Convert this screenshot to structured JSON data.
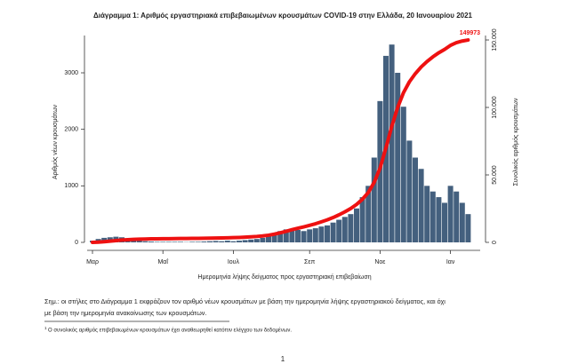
{
  "chart_data": {
    "type": "bar",
    "title": "Διάγραμμα 1: Αριθμός εργαστηριακά επιβεβαιωμένων κρουσμάτων COVID-19 στην Ελλάδα, 20 Ιανουαρίου 2021",
    "ylabel": "Αριθμός νέων κρουσμάτων",
    "y2label": "Συνολικός αριθμός κρουσμάτων",
    "xlabel": "Ημερομηνία λήψης δείγματος προς εργαστηριακή επιβεβαίωση",
    "categories": [
      "Μαρ",
      null,
      null,
      null,
      null,
      null,
      null,
      null,
      null,
      null,
      null,
      null,
      "Μαΐ",
      null,
      null,
      null,
      null,
      null,
      null,
      null,
      null,
      null,
      null,
      null,
      "Ιουλ",
      null,
      null,
      null,
      null,
      null,
      null,
      null,
      null,
      null,
      null,
      null,
      null,
      "Σεπ",
      null,
      null,
      null,
      null,
      null,
      null,
      null,
      null,
      null,
      null,
      null,
      "Νοε",
      null,
      null,
      null,
      null,
      null,
      null,
      null,
      null,
      null,
      null,
      null,
      "Ιαν",
      null,
      null,
      null
    ],
    "series": [
      {
        "type": "bar",
        "color": "#44607e",
        "values": [
          30,
          60,
          80,
          90,
          100,
          90,
          60,
          40,
          30,
          20,
          15,
          10,
          10,
          10,
          10,
          10,
          5,
          10,
          10,
          15,
          20,
          25,
          20,
          30,
          20,
          30,
          40,
          50,
          60,
          80,
          110,
          150,
          200,
          230,
          240,
          220,
          200,
          230,
          250,
          280,
          300,
          350,
          400,
          450,
          500,
          600,
          800,
          1000,
          1500,
          2500,
          3300,
          3500,
          3000,
          2400,
          1800,
          1500,
          1300,
          1000,
          900,
          800,
          700,
          1000,
          900,
          700,
          500
        ]
      },
      {
        "type": "line",
        "axis": "y2",
        "color": "#ee1111",
        "values": [
          0,
          200,
          500,
          900,
          1300,
          1700,
          2000,
          2200,
          2400,
          2500,
          2600,
          2650,
          2700,
          2750,
          2800,
          2850,
          2900,
          2950,
          3000,
          3050,
          3100,
          3200,
          3300,
          3400,
          3500,
          3650,
          3850,
          4100,
          4400,
          4800,
          5300,
          6100,
          7100,
          8200,
          9400,
          10500,
          11500,
          12600,
          13800,
          15200,
          16700,
          18400,
          20400,
          22600,
          25100,
          28100,
          32000,
          37000,
          44500,
          55000,
          70000,
          86000,
          100000,
          111000,
          119000,
          125000,
          130000,
          134000,
          137500,
          140500,
          143000,
          146000,
          148000,
          149200,
          149973
        ],
        "value_labels": [
          null,
          null,
          null,
          null,
          null,
          null,
          null,
          null,
          null,
          null,
          null,
          null,
          null,
          null,
          null,
          null,
          null,
          null,
          null,
          null,
          null,
          null,
          null,
          null,
          null,
          null,
          null,
          null,
          null,
          null,
          null,
          null,
          null,
          null,
          null,
          null,
          null,
          null,
          null,
          null,
          null,
          null,
          null,
          null,
          null,
          null,
          null,
          null,
          null,
          null,
          null,
          null,
          null,
          null,
          null,
          null,
          null,
          null,
          null,
          null,
          null,
          null,
          null,
          null,
          "149973"
        ]
      }
    ],
    "ylim": [
      0,
      3660
    ],
    "yticks": [
      0,
      1000,
      2000,
      3000
    ],
    "y2lim": [
      0,
      153300
    ],
    "y2ticks": [
      0,
      {
        "value": 50000,
        "label": "50.000"
      },
      {
        "value": 100000,
        "label": "100.000"
      },
      {
        "value": 150000,
        "label": "150.000"
      }
    ]
  },
  "note": "Σημ.: οι στήλες στο Διάγραμμα 1 εκφράζουν τον αριθμό νέων κρουσμάτων με βάση την ημερομηνία λήψης εργαστηριακού δείγματος, και όχι",
  "note_line2": "με βάση την ημερομηνία ανακοίνωσης των κρουσμάτων.",
  "footnote_mark": "1",
  "footnote": "Ο συνολικός αριθμός επιβεβαιωμένων κρουσμάτων έχει αναθεωρηθεί κατόπιν ελέγχου των δεδομένων.",
  "page_number": "1"
}
